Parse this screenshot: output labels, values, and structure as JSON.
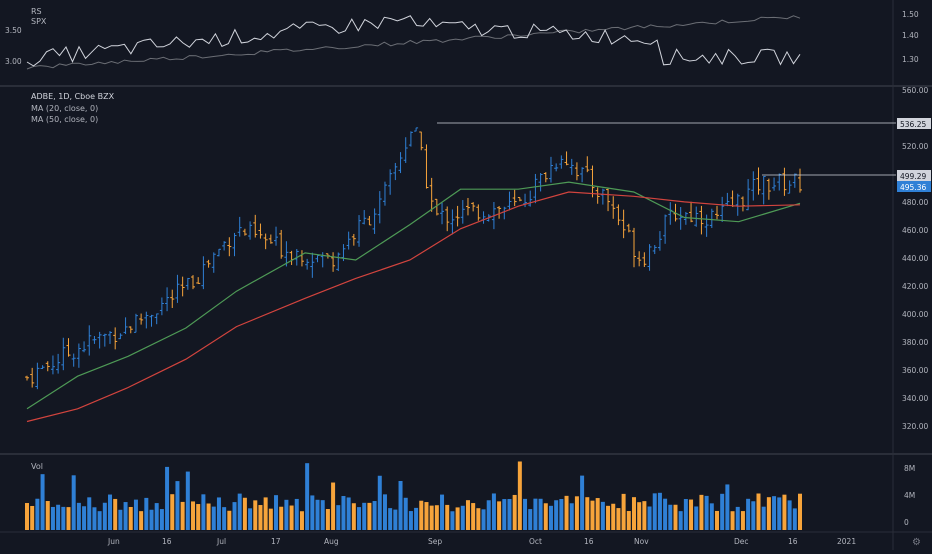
{
  "rs_pane": {
    "labels": [
      "RS",
      "SPX"
    ],
    "y_ticks": [
      "3.50",
      "3.00"
    ],
    "right_ticks": [
      "1.50",
      "1.40",
      "1.30"
    ]
  },
  "price_pane": {
    "legend": [
      "ADBE, 1D, Cboe BZX",
      "MA (20, close, 0)",
      "MA (50, close, 0)"
    ],
    "y_ticks": [
      "560.00",
      "540.00",
      "520.00",
      "500.00",
      "480.00",
      "460.00",
      "440.00",
      "420.00",
      "400.00",
      "380.00",
      "360.00",
      "340.00",
      "320.00"
    ],
    "ylim": [
      310,
      560
    ],
    "price_labels": [
      {
        "text": "536.25",
        "value": 536.25
      },
      {
        "text": "499.29",
        "value": 499.29
      },
      {
        "text": "495.36",
        "value": 495.36
      }
    ]
  },
  "volume_pane": {
    "label": "Vol",
    "y_ticks": [
      "8M",
      "4M",
      "0"
    ]
  },
  "x_axis": {
    "ticks": [
      "Jun",
      "16",
      "Jul",
      "17",
      "Aug",
      "Sep",
      "Oct",
      "16",
      "Nov",
      "Dec",
      "16",
      "2021"
    ]
  },
  "colors": {
    "background": "#131722",
    "up": "#2f80d6",
    "down": "#f7a43b",
    "ma20": "#4e9a56",
    "ma50": "#d2443e",
    "rs_line": "#d1d4dc",
    "spx_line": "#6b6e75",
    "grid": "#2a2e39",
    "label_bg": "#d1d4dc",
    "label_current_bg": "#2f80d6"
  },
  "chart_data": {
    "type": "candlestick",
    "title": "ADBE, 1D, Cboe BZX",
    "x_range": [
      "2020-05-18",
      "2020-12-18"
    ],
    "ylim": [
      310,
      560
    ],
    "series": [
      {
        "name": "MA (20, close, 0)",
        "x": [
          "2020-05-18",
          "2020-06-01",
          "2020-06-15",
          "2020-07-01",
          "2020-07-15",
          "2020-08-03",
          "2020-08-17",
          "2020-09-01",
          "2020-09-15",
          "2020-10-01",
          "2020-10-15",
          "2020-11-02",
          "2020-11-16",
          "2020-12-01",
          "2020-12-18"
        ],
        "values": [
          335,
          358,
          372,
          392,
          418,
          445,
          440,
          465,
          490,
          490,
          495,
          488,
          470,
          467,
          480
        ]
      },
      {
        "name": "MA (50, close, 0)",
        "x": [
          "2020-05-18",
          "2020-06-01",
          "2020-06-15",
          "2020-07-01",
          "2020-07-15",
          "2020-08-03",
          "2020-08-17",
          "2020-09-01",
          "2020-09-15",
          "2020-10-01",
          "2020-10-15",
          "2020-11-02",
          "2020-11-16",
          "2020-12-01",
          "2020-12-18"
        ],
        "values": [
          326,
          335,
          350,
          370,
          393,
          413,
          427,
          440,
          462,
          478,
          488,
          485,
          481,
          478,
          479
        ]
      }
    ],
    "close_points": {
      "x": [
        "2020-05-18",
        "2020-06-01",
        "2020-06-15",
        "2020-07-01",
        "2020-07-15",
        "2020-07-28",
        "2020-08-10",
        "2020-08-24",
        "2020-09-02",
        "2020-09-08",
        "2020-09-21",
        "2020-10-01",
        "2020-10-13",
        "2020-10-26",
        "2020-11-04",
        "2020-11-13",
        "2020-11-25",
        "2020-12-07",
        "2020-12-18"
      ],
      "values": [
        357,
        378,
        393,
        420,
        462,
        448,
        440,
        480,
        536,
        470,
        475,
        478,
        515,
        482,
        440,
        473,
        470,
        494,
        495
      ]
    },
    "volume_range": [
      0,
      8000000
    ],
    "rs_range": [
      2.85,
      3.55
    ],
    "spx_range": [
      1.25,
      1.55
    ]
  }
}
